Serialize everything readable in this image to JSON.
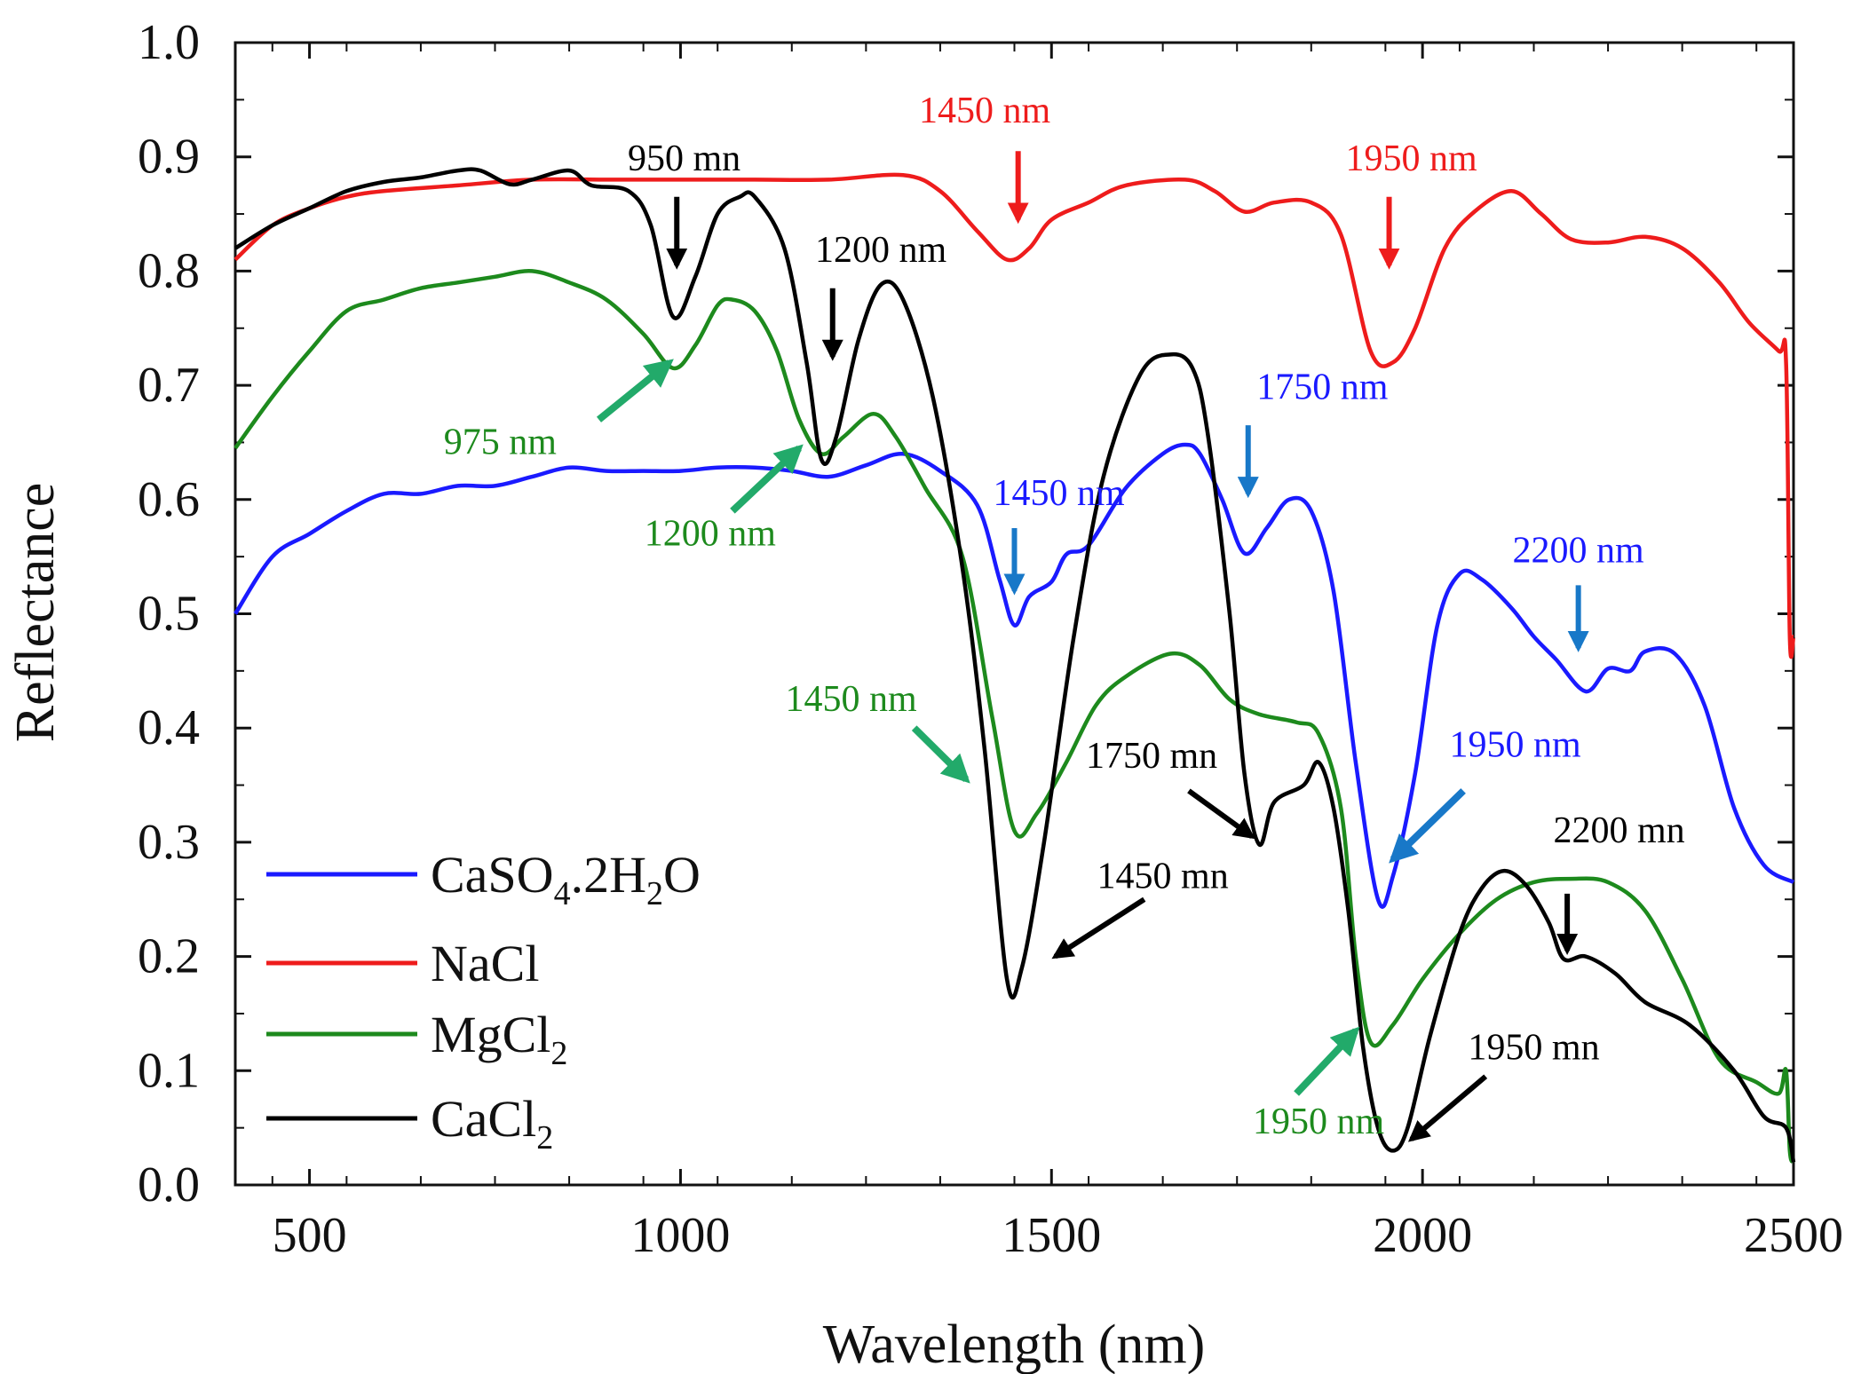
{
  "chart_data": {
    "type": "line",
    "title": "",
    "xlabel": "Wavelength (nm)",
    "ylabel": "Reflectance",
    "xlim": [
      400,
      2500
    ],
    "ylim": [
      0.0,
      1.0
    ],
    "xticks": [
      500,
      1000,
      1500,
      2000,
      2500
    ],
    "xtick_labels": [
      "500",
      "1000",
      "1500",
      "2000",
      "2500"
    ],
    "yticks": [
      0.0,
      0.1,
      0.2,
      0.3,
      0.4,
      0.5,
      0.6,
      0.7,
      0.8,
      0.9,
      1.0
    ],
    "ytick_labels": [
      "0.0",
      "0.1",
      "0.2",
      "0.3",
      "0.4",
      "0.5",
      "0.6",
      "0.7",
      "0.8",
      "0.9",
      "1.0"
    ],
    "legend_position": "bottom-left",
    "series": [
      {
        "name": "CaSO4.2H2O",
        "legend": {
          "main": "CaSO",
          "sub1": "4",
          "mid": ".2H",
          "sub2": "2",
          "end": "O"
        },
        "color": "#1a1aff",
        "points": [
          [
            400,
            0.5
          ],
          [
            450,
            0.55
          ],
          [
            500,
            0.57
          ],
          [
            550,
            0.59
          ],
          [
            600,
            0.605
          ],
          [
            650,
            0.605
          ],
          [
            700,
            0.612
          ],
          [
            750,
            0.612
          ],
          [
            800,
            0.62
          ],
          [
            850,
            0.628
          ],
          [
            900,
            0.625
          ],
          [
            950,
            0.625
          ],
          [
            1000,
            0.625
          ],
          [
            1050,
            0.628
          ],
          [
            1100,
            0.628
          ],
          [
            1150,
            0.625
          ],
          [
            1200,
            0.62
          ],
          [
            1250,
            0.63
          ],
          [
            1300,
            0.64
          ],
          [
            1350,
            0.625
          ],
          [
            1400,
            0.595
          ],
          [
            1430,
            0.53
          ],
          [
            1450,
            0.49
          ],
          [
            1470,
            0.515
          ],
          [
            1500,
            0.528
          ],
          [
            1520,
            0.552
          ],
          [
            1550,
            0.56
          ],
          [
            1600,
            0.61
          ],
          [
            1650,
            0.64
          ],
          [
            1680,
            0.648
          ],
          [
            1700,
            0.64
          ],
          [
            1730,
            0.6
          ],
          [
            1760,
            0.553
          ],
          [
            1790,
            0.575
          ],
          [
            1820,
            0.6
          ],
          [
            1850,
            0.59
          ],
          [
            1880,
            0.52
          ],
          [
            1910,
            0.37
          ],
          [
            1940,
            0.25
          ],
          [
            1960,
            0.27
          ],
          [
            1990,
            0.36
          ],
          [
            2020,
            0.49
          ],
          [
            2050,
            0.535
          ],
          [
            2080,
            0.53
          ],
          [
            2120,
            0.505
          ],
          [
            2150,
            0.48
          ],
          [
            2180,
            0.46
          ],
          [
            2220,
            0.432
          ],
          [
            2250,
            0.452
          ],
          [
            2280,
            0.45
          ],
          [
            2300,
            0.467
          ],
          [
            2340,
            0.465
          ],
          [
            2380,
            0.42
          ],
          [
            2420,
            0.33
          ],
          [
            2460,
            0.28
          ],
          [
            2500,
            0.265
          ]
        ]
      },
      {
        "name": "NaCl",
        "legend": {
          "main": "NaCl"
        },
        "color": "#ee1c1c",
        "points": [
          [
            400,
            0.81
          ],
          [
            450,
            0.84
          ],
          [
            500,
            0.855
          ],
          [
            550,
            0.865
          ],
          [
            600,
            0.87
          ],
          [
            700,
            0.875
          ],
          [
            800,
            0.88
          ],
          [
            900,
            0.88
          ],
          [
            1000,
            0.88
          ],
          [
            1100,
            0.88
          ],
          [
            1200,
            0.88
          ],
          [
            1300,
            0.884
          ],
          [
            1350,
            0.87
          ],
          [
            1400,
            0.835
          ],
          [
            1440,
            0.81
          ],
          [
            1470,
            0.82
          ],
          [
            1500,
            0.845
          ],
          [
            1550,
            0.86
          ],
          [
            1600,
            0.875
          ],
          [
            1680,
            0.88
          ],
          [
            1720,
            0.87
          ],
          [
            1760,
            0.852
          ],
          [
            1800,
            0.86
          ],
          [
            1850,
            0.86
          ],
          [
            1890,
            0.832
          ],
          [
            1930,
            0.73
          ],
          [
            1960,
            0.72
          ],
          [
            1990,
            0.75
          ],
          [
            2030,
            0.82
          ],
          [
            2070,
            0.852
          ],
          [
            2120,
            0.87
          ],
          [
            2160,
            0.85
          ],
          [
            2200,
            0.828
          ],
          [
            2250,
            0.825
          ],
          [
            2300,
            0.83
          ],
          [
            2350,
            0.82
          ],
          [
            2400,
            0.79
          ],
          [
            2440,
            0.755
          ],
          [
            2480,
            0.73
          ],
          [
            2490,
            0.72
          ],
          [
            2495,
            0.48
          ],
          [
            2500,
            0.48
          ]
        ]
      },
      {
        "name": "MgCl2",
        "legend": {
          "main": "MgCl",
          "sub1": "2"
        },
        "color": "#1d8a1d",
        "points": [
          [
            400,
            0.645
          ],
          [
            450,
            0.69
          ],
          [
            500,
            0.73
          ],
          [
            550,
            0.765
          ],
          [
            600,
            0.775
          ],
          [
            650,
            0.785
          ],
          [
            700,
            0.79
          ],
          [
            750,
            0.795
          ],
          [
            800,
            0.8
          ],
          [
            850,
            0.79
          ],
          [
            900,
            0.775
          ],
          [
            950,
            0.745
          ],
          [
            990,
            0.715
          ],
          [
            1020,
            0.735
          ],
          [
            1050,
            0.77
          ],
          [
            1070,
            0.775
          ],
          [
            1100,
            0.765
          ],
          [
            1130,
            0.73
          ],
          [
            1160,
            0.67
          ],
          [
            1190,
            0.64
          ],
          [
            1220,
            0.655
          ],
          [
            1260,
            0.675
          ],
          [
            1290,
            0.655
          ],
          [
            1330,
            0.61
          ],
          [
            1380,
            0.55
          ],
          [
            1420,
            0.41
          ],
          [
            1450,
            0.31
          ],
          [
            1480,
            0.325
          ],
          [
            1520,
            0.37
          ],
          [
            1560,
            0.42
          ],
          [
            1600,
            0.445
          ],
          [
            1660,
            0.465
          ],
          [
            1700,
            0.455
          ],
          [
            1740,
            0.425
          ],
          [
            1780,
            0.412
          ],
          [
            1830,
            0.405
          ],
          [
            1860,
            0.395
          ],
          [
            1890,
            0.33
          ],
          [
            1910,
            0.2
          ],
          [
            1930,
            0.125
          ],
          [
            1960,
            0.14
          ],
          [
            2000,
            0.18
          ],
          [
            2050,
            0.22
          ],
          [
            2100,
            0.25
          ],
          [
            2150,
            0.265
          ],
          [
            2200,
            0.268
          ],
          [
            2250,
            0.265
          ],
          [
            2300,
            0.24
          ],
          [
            2350,
            0.18
          ],
          [
            2400,
            0.11
          ],
          [
            2450,
            0.09
          ],
          [
            2480,
            0.08
          ],
          [
            2490,
            0.1
          ],
          [
            2495,
            0.03
          ],
          [
            2500,
            0.02
          ]
        ]
      },
      {
        "name": "CaCl2",
        "legend": {
          "main": "CaCl",
          "sub1": "2"
        },
        "color": "#000000",
        "points": [
          [
            400,
            0.82
          ],
          [
            450,
            0.84
          ],
          [
            500,
            0.855
          ],
          [
            550,
            0.87
          ],
          [
            600,
            0.878
          ],
          [
            650,
            0.882
          ],
          [
            700,
            0.888
          ],
          [
            730,
            0.888
          ],
          [
            770,
            0.876
          ],
          [
            800,
            0.88
          ],
          [
            850,
            0.888
          ],
          [
            880,
            0.875
          ],
          [
            930,
            0.87
          ],
          [
            960,
            0.84
          ],
          [
            990,
            0.76
          ],
          [
            1020,
            0.795
          ],
          [
            1050,
            0.85
          ],
          [
            1080,
            0.865
          ],
          [
            1100,
            0.865
          ],
          [
            1140,
            0.82
          ],
          [
            1170,
            0.72
          ],
          [
            1190,
            0.635
          ],
          [
            1210,
            0.655
          ],
          [
            1240,
            0.74
          ],
          [
            1270,
            0.788
          ],
          [
            1300,
            0.775
          ],
          [
            1340,
            0.69
          ],
          [
            1380,
            0.54
          ],
          [
            1410,
            0.38
          ],
          [
            1440,
            0.18
          ],
          [
            1460,
            0.19
          ],
          [
            1490,
            0.3
          ],
          [
            1530,
            0.48
          ],
          [
            1570,
            0.62
          ],
          [
            1620,
            0.71
          ],
          [
            1660,
            0.727
          ],
          [
            1690,
            0.715
          ],
          [
            1710,
            0.66
          ],
          [
            1740,
            0.5
          ],
          [
            1760,
            0.36
          ],
          [
            1780,
            0.298
          ],
          [
            1800,
            0.335
          ],
          [
            1840,
            0.35
          ],
          [
            1860,
            0.37
          ],
          [
            1880,
            0.33
          ],
          [
            1900,
            0.24
          ],
          [
            1920,
            0.12
          ],
          [
            1940,
            0.05
          ],
          [
            1960,
            0.03
          ],
          [
            1980,
            0.05
          ],
          [
            2010,
            0.13
          ],
          [
            2050,
            0.22
          ],
          [
            2080,
            0.26
          ],
          [
            2110,
            0.275
          ],
          [
            2140,
            0.262
          ],
          [
            2170,
            0.23
          ],
          [
            2190,
            0.198
          ],
          [
            2220,
            0.2
          ],
          [
            2260,
            0.185
          ],
          [
            2300,
            0.16
          ],
          [
            2360,
            0.14
          ],
          [
            2420,
            0.1
          ],
          [
            2460,
            0.06
          ],
          [
            2490,
            0.05
          ],
          [
            2500,
            0.02
          ]
        ]
      }
    ],
    "annotations": [
      {
        "text": "950 mn",
        "color": "#000000",
        "x": 1005,
        "y": 0.888
      },
      {
        "text": "1200 nm",
        "color": "#000000",
        "x": 1270,
        "y": 0.808
      },
      {
        "text": "1450 nm",
        "color": "#ee1c1c",
        "x": 1410,
        "y": 0.93
      },
      {
        "text": "1950 nm",
        "color": "#ee1c1c",
        "x": 1985,
        "y": 0.888
      },
      {
        "text": "1750 nm",
        "color": "#1a1aff",
        "x": 1865,
        "y": 0.688
      },
      {
        "text": "1450 nm",
        "color": "#1a1aff",
        "x": 1510,
        "y": 0.595
      },
      {
        "text": "2200 nm",
        "color": "#1a1aff",
        "x": 2210,
        "y": 0.545
      },
      {
        "text": "1950 nm",
        "color": "#1a1aff",
        "x": 2125,
        "y": 0.375
      },
      {
        "text": "975 nm",
        "color": "#1d8a1d",
        "x": 757,
        "y": 0.64
      },
      {
        "text": "1200 nm",
        "color": "#1d8a1d",
        "x": 1040,
        "y": 0.56
      },
      {
        "text": "1450 nm",
        "color": "#1d8a1d",
        "x": 1230,
        "y": 0.415
      },
      {
        "text": "1950 nm",
        "color": "#1d8a1d",
        "x": 1860,
        "y": 0.045
      },
      {
        "text": "1750 mn",
        "color": "#000000",
        "x": 1635,
        "y": 0.365
      },
      {
        "text": "1450 mn",
        "color": "#000000",
        "x": 1650,
        "y": 0.26
      },
      {
        "text": "2200 mn",
        "color": "#000000",
        "x": 2265,
        "y": 0.3
      },
      {
        "text": "1950 mn",
        "color": "#000000",
        "x": 2150,
        "y": 0.11
      }
    ],
    "arrows": [
      {
        "color": "#000000",
        "from": [
          995,
          0.865
        ],
        "to": [
          995,
          0.805
        ]
      },
      {
        "color": "#000000",
        "from": [
          1205,
          0.785
        ],
        "to": [
          1205,
          0.725
        ]
      },
      {
        "color": "#ee1c1c",
        "from": [
          1455,
          0.905
        ],
        "to": [
          1455,
          0.845
        ]
      },
      {
        "color": "#ee1c1c",
        "from": [
          1955,
          0.865
        ],
        "to": [
          1955,
          0.805
        ]
      },
      {
        "color": "#1878c8",
        "from": [
          1765,
          0.665
        ],
        "to": [
          1765,
          0.605
        ]
      },
      {
        "color": "#1878c8",
        "from": [
          1450,
          0.575
        ],
        "to": [
          1450,
          0.52
        ]
      },
      {
        "color": "#1878c8",
        "from": [
          2210,
          0.525
        ],
        "to": [
          2210,
          0.47
        ]
      },
      {
        "color": "#1878c8",
        "from": [
          2055,
          0.345
        ],
        "to": [
          1960,
          0.285
        ]
      },
      {
        "color": "#22aa6a",
        "from": [
          890,
          0.67
        ],
        "to": [
          985,
          0.72
        ]
      },
      {
        "color": "#22aa6a",
        "from": [
          1070,
          0.59
        ],
        "to": [
          1160,
          0.645
        ]
      },
      {
        "color": "#22aa6a",
        "from": [
          1315,
          0.4
        ],
        "to": [
          1385,
          0.355
        ]
      },
      {
        "color": "#22aa6a",
        "from": [
          1830,
          0.08
        ],
        "to": [
          1910,
          0.135
        ]
      },
      {
        "color": "#000000",
        "from": [
          1685,
          0.345
        ],
        "to": [
          1770,
          0.305
        ]
      },
      {
        "color": "#000000",
        "from": [
          1625,
          0.25
        ],
        "to": [
          1505,
          0.2
        ]
      },
      {
        "color": "#000000",
        "from": [
          2195,
          0.255
        ],
        "to": [
          2195,
          0.205
        ]
      },
      {
        "color": "#000000",
        "from": [
          2085,
          0.095
        ],
        "to": [
          1985,
          0.04
        ]
      }
    ]
  }
}
